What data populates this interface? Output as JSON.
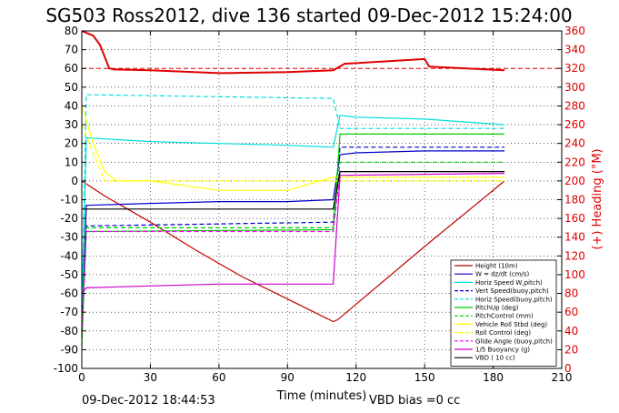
{
  "chart_data": {
    "type": "line",
    "title": "SG503 Ross2012, dive 136 started 09-Dec-2012 15:24:00",
    "xlabel": "Time (minutes)",
    "ylabel_right": "(+) Heading (°M)",
    "footer_left": "09-Dec-2012 18:44:53",
    "footer_right": "VBD bias =0 cc",
    "xlim": [
      0,
      210
    ],
    "ylim": [
      -100,
      80
    ],
    "ylim_right": [
      0,
      360
    ],
    "xticks": [
      0,
      30,
      60,
      90,
      120,
      150,
      180,
      210
    ],
    "yticks": [
      -100,
      -90,
      -80,
      -70,
      -60,
      -50,
      -40,
      -30,
      -20,
      -10,
      0,
      10,
      20,
      30,
      40,
      50,
      60,
      70,
      80
    ],
    "yticks_right": [
      0,
      20,
      40,
      60,
      80,
      100,
      120,
      140,
      160,
      180,
      200,
      220,
      240,
      260,
      280,
      300,
      320,
      340,
      360
    ],
    "grid": true,
    "legend_position": "bottom-right",
    "series": [
      {
        "name": "Height (10m)",
        "color": "#c00000",
        "style": "solid",
        "x": [
          0,
          10,
          30,
          50,
          70,
          90,
          105,
          110,
          112,
          150,
          185
        ],
        "y": [
          0,
          -8,
          -22,
          -37,
          -51,
          -63,
          -72,
          -75,
          -74,
          -35,
          0
        ]
      },
      {
        "name": "W = dz/dt (cm/s)",
        "color": "#0000cc",
        "style": "solid",
        "x": [
          0,
          2,
          30,
          60,
          90,
          110,
          113,
          120,
          150,
          185
        ],
        "y": [
          -80,
          -13,
          -12,
          -11,
          -11,
          -10,
          14,
          15,
          16,
          16
        ]
      },
      {
        "name": "Horiz Speed W,pitch)",
        "color": "#00dddd",
        "style": "solid",
        "x": [
          0,
          2,
          30,
          60,
          90,
          110,
          113,
          120,
          150,
          185
        ],
        "y": [
          -70,
          23,
          21,
          20,
          19,
          18,
          35,
          34,
          33,
          30
        ]
      },
      {
        "name": "Vert Speed(buoy,pitch)",
        "color": "#0000cc",
        "style": "dashed",
        "x": [
          0,
          2,
          110,
          113,
          185
        ],
        "y": [
          -80,
          -24,
          -22,
          18,
          18
        ]
      },
      {
        "name": "Horiz Speed(buoy,pitch)",
        "color": "#00dddd",
        "style": "dashed",
        "x": [
          0,
          2,
          110,
          113,
          185
        ],
        "y": [
          -70,
          46,
          44,
          28,
          28
        ]
      },
      {
        "name": "PitchUp (deg)",
        "color": "#00cc00",
        "style": "solid",
        "x": [
          0,
          2,
          110,
          113,
          185
        ],
        "y": [
          -85,
          -27,
          -26,
          25,
          25
        ]
      },
      {
        "name": "PitchControl (mm)",
        "color": "#00cc00",
        "style": "dashed",
        "x": [
          0,
          2,
          110,
          113,
          185
        ],
        "y": [
          -88,
          -25,
          -25,
          10,
          10
        ]
      },
      {
        "name": "Vehicle Roll Stbd (deg)",
        "color": "#ffff00",
        "style": "solid",
        "x": [
          0,
          5,
          10,
          15,
          30,
          60,
          90,
          110,
          113,
          150,
          185
        ],
        "y": [
          40,
          20,
          5,
          0,
          0,
          -5,
          -5,
          2,
          2,
          2,
          2
        ]
      },
      {
        "name": "Roll Control (deg)",
        "color": "#ffff00",
        "style": "dashed",
        "x": [
          0,
          5,
          10,
          15,
          110,
          113,
          185
        ],
        "y": [
          30,
          15,
          0,
          0,
          0,
          0,
          0
        ]
      },
      {
        "name": "Glide Angle (buoy,pitch)",
        "color": "#ff00ff",
        "style": "dashed",
        "x": [
          0,
          2,
          110,
          113,
          185
        ],
        "y": [
          -82,
          -27,
          -27,
          5,
          5
        ]
      },
      {
        "name": "1/5 Buoyancy (g)",
        "color": "#cc00cc",
        "style": "solid",
        "x": [
          0,
          2,
          30,
          60,
          90,
          110,
          113,
          185
        ],
        "y": [
          -60,
          -57,
          -56,
          -55,
          -55,
          -55,
          3,
          4
        ]
      },
      {
        "name": "VBD ( 10 cc)",
        "color": "#000000",
        "style": "solid",
        "x": [
          0,
          2,
          110,
          113,
          185
        ],
        "y": [
          -15,
          -15,
          -15,
          5,
          5
        ]
      },
      {
        "name": "Heading",
        "axis": "right",
        "color": "#e00000",
        "style": "solid",
        "x": [
          0,
          5,
          8,
          12,
          14,
          30,
          60,
          90,
          110,
          115,
          150,
          152,
          185
        ],
        "y": [
          360,
          355,
          345,
          320,
          319,
          318,
          315,
          316,
          318,
          325,
          330,
          322,
          318
        ]
      }
    ],
    "reference_lines": [
      {
        "axis": "right",
        "value": 320,
        "color": "#e00000",
        "style": "dashed"
      }
    ]
  }
}
